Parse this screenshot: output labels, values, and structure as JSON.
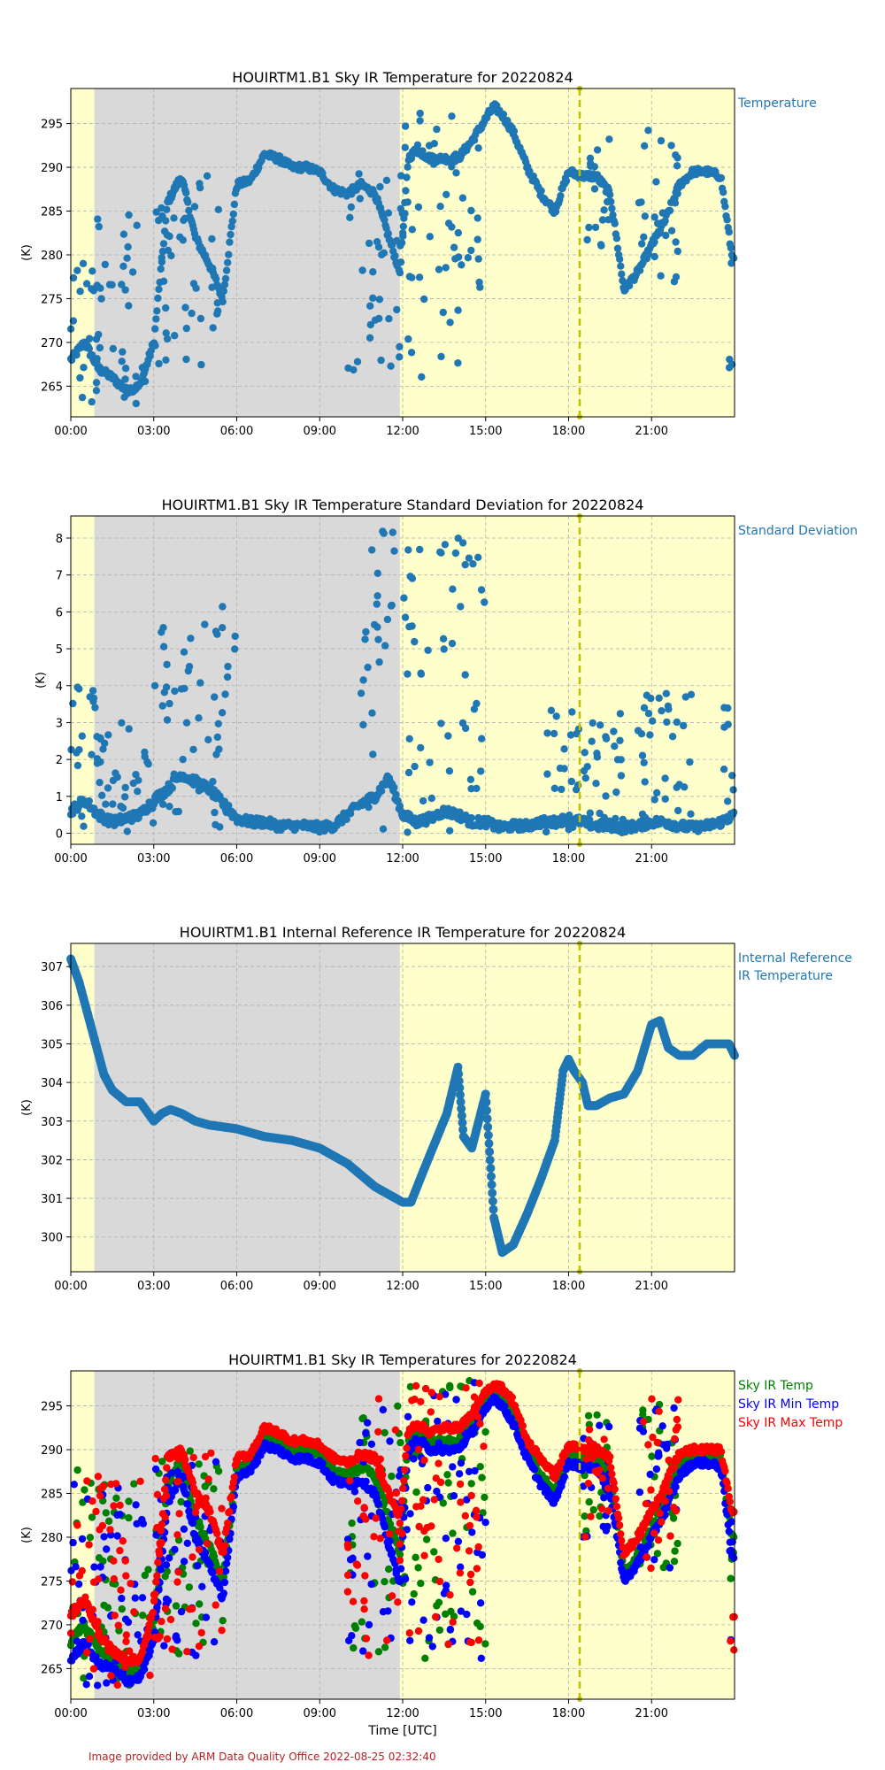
{
  "credit": "Image provided by ARM Data Quality Office 2022-08-25 02:32:40",
  "colors": {
    "night_shade": "#d9d9d9",
    "day_shade": "#ffffcc",
    "marker_line": "#bfbf00",
    "series_blue": "#1f77b4",
    "green": "#008000",
    "blue": "#0000ff",
    "red": "#ff0000"
  },
  "chart_data": [
    {
      "type": "scatter",
      "title": "HOUIRTM1.B1 Sky IR Temperature for 20220824",
      "ylabel": "(K)",
      "xlabel": "",
      "xlim": [
        0,
        24
      ],
      "ylim": [
        261.5,
        299
      ],
      "x_ticks": [
        0,
        3,
        6,
        9,
        12,
        15,
        18,
        21
      ],
      "x_tick_labels": [
        "00:00",
        "03:00",
        "06:00",
        "09:00",
        "12:00",
        "15:00",
        "18:00",
        "21:00"
      ],
      "y_ticks": [
        265,
        270,
        275,
        280,
        285,
        290,
        295
      ],
      "grid": true,
      "shading": [
        {
          "from": 0,
          "to": 0.85,
          "kind": "day"
        },
        {
          "from": 0.85,
          "to": 11.9,
          "kind": "night"
        },
        {
          "from": 11.9,
          "to": 24,
          "kind": "day"
        }
      ],
      "vline_hour": 18.4,
      "legend": [
        {
          "label": "Temperature",
          "color": "#1f77b4"
        }
      ],
      "series": [
        {
          "name": "Temperature",
          "color": "#1f77b4",
          "x": [
            0,
            0.5,
            1,
            1.5,
            2,
            2.5,
            3,
            3.5,
            4,
            4.5,
            5,
            5.5,
            6,
            6.5,
            7,
            7.5,
            8,
            8.5,
            9,
            9.5,
            10,
            10.5,
            11,
            11.5,
            11.9,
            12.2,
            12.5,
            13,
            13.5,
            14,
            14.5,
            15,
            15.3,
            15.6,
            16,
            16.5,
            17,
            17.5,
            18,
            18.5,
            19,
            19.5,
            20,
            20.5,
            21,
            21.5,
            22,
            22.5,
            23,
            23.5,
            23.9
          ],
          "y": [
            268,
            270,
            267,
            266,
            264.5,
            265,
            270,
            286,
            289,
            282,
            279,
            275,
            288,
            288.5,
            291.5,
            291,
            290,
            290,
            289.5,
            287.5,
            287,
            288,
            287,
            282,
            278,
            291,
            292,
            291,
            291,
            291,
            293,
            295.5,
            297,
            296,
            294,
            290,
            287,
            285,
            289.5,
            289,
            289,
            287,
            276,
            278,
            281,
            284,
            288,
            289.5,
            289.5,
            289,
            280
          ]
        }
      ],
      "scatter_hours": [
        {
          "from": 0,
          "to": 0.85,
          "ymin": 263,
          "ymax": 281
        },
        {
          "from": 0.9,
          "to": 2.9,
          "ymin": 263,
          "ymax": 286
        },
        {
          "from": 3,
          "to": 5.5,
          "ymin": 267,
          "ymax": 290
        },
        {
          "from": 10,
          "to": 12,
          "ymin": 266,
          "ymax": 290
        },
        {
          "from": 12,
          "to": 15,
          "ymin": 266,
          "ymax": 297
        },
        {
          "from": 18.5,
          "to": 19.5,
          "ymin": 280,
          "ymax": 294
        },
        {
          "from": 20.5,
          "to": 22,
          "ymin": 276,
          "ymax": 295
        },
        {
          "from": 23.8,
          "to": 24,
          "ymin": 266,
          "ymax": 283
        }
      ]
    },
    {
      "type": "scatter",
      "title": "HOUIRTM1.B1 Sky IR Temperature Standard Deviation for 20220824",
      "ylabel": "(K)",
      "xlabel": "",
      "xlim": [
        0,
        24
      ],
      "ylim": [
        -0.3,
        8.6
      ],
      "x_ticks": [
        0,
        3,
        6,
        9,
        12,
        15,
        18,
        21
      ],
      "x_tick_labels": [
        "00:00",
        "03:00",
        "06:00",
        "09:00",
        "12:00",
        "15:00",
        "18:00",
        "21:00"
      ],
      "y_ticks": [
        0,
        1,
        2,
        3,
        4,
        5,
        6,
        7,
        8
      ],
      "grid": true,
      "shading": [
        {
          "from": 0,
          "to": 0.85,
          "kind": "day"
        },
        {
          "from": 0.85,
          "to": 11.9,
          "kind": "night"
        },
        {
          "from": 11.9,
          "to": 24,
          "kind": "day"
        }
      ],
      "vline_hour": 18.4,
      "legend": [
        {
          "label": "Standard Deviation",
          "color": "#1f77b4"
        }
      ],
      "series": [
        {
          "name": "Standard Deviation",
          "color": "#1f77b4",
          "x": [
            0,
            0.5,
            1,
            1.5,
            2,
            2.5,
            3,
            3.5,
            4,
            4.5,
            5,
            5.5,
            6,
            6.5,
            7,
            7.5,
            8,
            8.5,
            9,
            9.5,
            10,
            10.5,
            11,
            11.5,
            12,
            12.5,
            13,
            13.5,
            14,
            14.5,
            15,
            15.5,
            16,
            16.5,
            17,
            17.5,
            18,
            18.5,
            19,
            19.5,
            20,
            20.5,
            21,
            21.5,
            22,
            22.5,
            23,
            23.5,
            24
          ],
          "y": [
            0.6,
            0.9,
            0.5,
            0.3,
            0.4,
            0.5,
            0.9,
            1.2,
            1.6,
            1.4,
            1.2,
            0.8,
            0.4,
            0.3,
            0.3,
            0.2,
            0.2,
            0.2,
            0.15,
            0.2,
            0.5,
            0.8,
            1.0,
            1.5,
            0.5,
            0.3,
            0.4,
            0.6,
            0.5,
            0.3,
            0.3,
            0.15,
            0.2,
            0.2,
            0.3,
            0.3,
            0.4,
            0.3,
            0.2,
            0.2,
            0.15,
            0.2,
            0.3,
            0.3,
            0.2,
            0.15,
            0.2,
            0.3,
            0.5
          ]
        }
      ],
      "scatter_hours": [
        {
          "from": 0,
          "to": 0.9,
          "ymin": 0,
          "ymax": 4.5
        },
        {
          "from": 0.9,
          "to": 3,
          "ymin": 0,
          "ymax": 3
        },
        {
          "from": 3,
          "to": 6,
          "ymin": 0,
          "ymax": 6.4
        },
        {
          "from": 10.5,
          "to": 12,
          "ymin": 0,
          "ymax": 8.2
        },
        {
          "from": 12,
          "to": 15,
          "ymin": 0,
          "ymax": 8
        },
        {
          "from": 17,
          "to": 20,
          "ymin": 0,
          "ymax": 3.4
        },
        {
          "from": 20.5,
          "to": 22.5,
          "ymin": 0,
          "ymax": 3.8
        },
        {
          "from": 23.5,
          "to": 24,
          "ymin": 0,
          "ymax": 3.5
        }
      ]
    },
    {
      "type": "scatter",
      "title": "HOUIRTM1.B1 Internal Reference IR Temperature for 20220824",
      "ylabel": "(K)",
      "xlabel": "",
      "xlim": [
        0,
        24
      ],
      "ylim": [
        299.1,
        307.6
      ],
      "x_ticks": [
        0,
        3,
        6,
        9,
        12,
        15,
        18,
        21
      ],
      "x_tick_labels": [
        "00:00",
        "03:00",
        "06:00",
        "09:00",
        "12:00",
        "15:00",
        "18:00",
        "21:00"
      ],
      "y_ticks": [
        300,
        301,
        302,
        303,
        304,
        305,
        306,
        307
      ],
      "grid": true,
      "shading": [
        {
          "from": 0,
          "to": 0.85,
          "kind": "day"
        },
        {
          "from": 0.85,
          "to": 11.9,
          "kind": "night"
        },
        {
          "from": 11.9,
          "to": 24,
          "kind": "day"
        }
      ],
      "vline_hour": 18.4,
      "legend": [
        {
          "label": "Internal Reference\n IR Temperature",
          "color": "#1f77b4"
        }
      ],
      "series": [
        {
          "name": "Internal Reference IR Temperature",
          "color": "#1f77b4",
          "x": [
            0,
            0.3,
            0.6,
            0.9,
            1.2,
            1.5,
            2,
            2.5,
            2.8,
            3,
            3.3,
            3.6,
            4,
            4.5,
            5,
            6,
            7,
            8,
            9,
            9.5,
            10,
            10.5,
            11,
            11.5,
            12,
            12.3,
            12.8,
            13.2,
            13.6,
            14,
            14.2,
            14.5,
            15,
            15.3,
            15.6,
            16,
            16.5,
            17,
            17.5,
            17.8,
            18,
            18.2,
            18.5,
            18.7,
            19,
            19.5,
            20,
            20.5,
            21,
            21.3,
            21.6,
            22,
            22.5,
            23,
            23.5,
            23.8,
            24
          ],
          "y": [
            307.2,
            306.6,
            305.8,
            305,
            304.2,
            303.8,
            303.5,
            303.5,
            303.2,
            303,
            303.2,
            303.3,
            303.2,
            303,
            302.9,
            302.8,
            302.6,
            302.5,
            302.3,
            302.1,
            301.9,
            301.6,
            301.3,
            301.1,
            300.9,
            300.9,
            301.8,
            302.5,
            303.2,
            304.4,
            302.6,
            302.3,
            303.7,
            300.5,
            299.6,
            299.8,
            300.6,
            301.5,
            302.5,
            304.3,
            304.6,
            304.3,
            304,
            303.4,
            303.4,
            303.6,
            303.7,
            304.3,
            305.5,
            305.6,
            304.9,
            304.7,
            304.7,
            305,
            305,
            305,
            304.7
          ]
        }
      ],
      "scatter_hours": []
    },
    {
      "type": "scatter",
      "title": "HOUIRTM1.B1 Sky IR Temperatures for 20220824",
      "ylabel": "(K)",
      "xlabel": "Time [UTC]",
      "xlim": [
        0,
        24
      ],
      "ylim": [
        261.5,
        299
      ],
      "x_ticks": [
        0,
        3,
        6,
        9,
        12,
        15,
        18,
        21
      ],
      "x_tick_labels": [
        "00:00",
        "03:00",
        "06:00",
        "09:00",
        "12:00",
        "15:00",
        "18:00",
        "21:00"
      ],
      "y_ticks": [
        265,
        270,
        275,
        280,
        285,
        290,
        295
      ],
      "grid": true,
      "shading": [
        {
          "from": 0,
          "to": 0.85,
          "kind": "day"
        },
        {
          "from": 0.85,
          "to": 11.9,
          "kind": "night"
        },
        {
          "from": 11.9,
          "to": 24,
          "kind": "day"
        }
      ],
      "vline_hour": 18.4,
      "legend": [
        {
          "label": "Sky IR Temp",
          "color": "#008000"
        },
        {
          "label": "Sky IR Min Temp",
          "color": "#0000ff"
        },
        {
          "label": "Sky IR Max Temp",
          "color": "#ff0000"
        }
      ],
      "series": [
        {
          "name": "Sky IR Temp",
          "color": "#008000",
          "x": [
            0,
            0.5,
            1,
            1.5,
            2,
            2.5,
            3,
            3.5,
            4,
            4.5,
            5,
            5.5,
            6,
            6.5,
            7,
            7.5,
            8,
            8.5,
            9,
            9.5,
            10,
            10.5,
            11,
            11.5,
            11.9,
            12.2,
            12.5,
            13,
            13.5,
            14,
            14.5,
            15,
            15.3,
            15.6,
            16,
            16.5,
            17,
            17.5,
            18,
            18.5,
            19,
            19.5,
            20,
            20.5,
            21,
            21.5,
            22,
            22.5,
            23,
            23.5,
            23.9
          ],
          "y": [
            268,
            270,
            267,
            266,
            264.5,
            265,
            270,
            286,
            289,
            282,
            279,
            275,
            288,
            288.5,
            291.5,
            291,
            290,
            290,
            289.5,
            287.5,
            287,
            288,
            287,
            282,
            278,
            291,
            292,
            291,
            291,
            291,
            293,
            295.5,
            297,
            296,
            294,
            290,
            287,
            285,
            289.5,
            289,
            289,
            287,
            276,
            278,
            281,
            284,
            288,
            289.5,
            289.5,
            289,
            280
          ]
        },
        {
          "name": "Sky IR Min Temp",
          "color": "#0000ff",
          "x": [
            0,
            0.5,
            1,
            1.5,
            2,
            2.5,
            3,
            3.5,
            4,
            4.5,
            5,
            5.5,
            6,
            6.5,
            7,
            7.5,
            8,
            8.5,
            9,
            9.5,
            10,
            10.5,
            11,
            11.5,
            11.9,
            12.2,
            12.5,
            13,
            13.5,
            14,
            14.5,
            15,
            15.3,
            15.6,
            16,
            16.5,
            17,
            17.5,
            18,
            18.5,
            19,
            19.5,
            20,
            20.5,
            21,
            21.5,
            22,
            22.5,
            23,
            23.5,
            23.9
          ],
          "y": [
            266,
            268,
            265.5,
            265,
            263.5,
            264,
            268,
            284,
            287,
            280,
            277,
            273,
            287,
            287.5,
            290.5,
            290,
            289,
            289,
            288.5,
            286.5,
            286,
            286.5,
            285,
            279,
            275,
            290,
            291,
            290,
            290,
            290,
            292,
            294.5,
            296,
            295,
            293,
            289,
            286,
            284,
            288.5,
            288,
            288,
            285,
            275,
            277,
            280,
            283,
            287,
            288.5,
            288.5,
            288,
            278
          ]
        },
        {
          "name": "Sky IR Max Temp",
          "color": "#ff0000",
          "x": [
            0,
            0.5,
            1,
            1.5,
            2,
            2.5,
            3,
            3.5,
            4,
            4.5,
            5,
            5.5,
            6,
            6.5,
            7,
            7.5,
            8,
            8.5,
            9,
            9.5,
            10,
            10.5,
            11,
            11.5,
            11.9,
            12.2,
            12.5,
            13,
            13.5,
            14,
            14.5,
            15,
            15.3,
            15.6,
            16,
            16.5,
            17,
            17.5,
            18,
            18.5,
            19,
            19.5,
            20,
            20.5,
            21,
            21.5,
            22,
            22.5,
            23,
            23.5,
            23.9
          ],
          "y": [
            271,
            273,
            269,
            267,
            266,
            266,
            272,
            289,
            290,
            285,
            283,
            278,
            289,
            289.5,
            292.5,
            292,
            291,
            291,
            290.5,
            289,
            288.5,
            289.5,
            289,
            285,
            282,
            292,
            293,
            292,
            292.5,
            292.5,
            294,
            296.5,
            297.5,
            297,
            295.5,
            291,
            289,
            287,
            290.5,
            290,
            290,
            289,
            278,
            280,
            283,
            286,
            289.5,
            290,
            290,
            290,
            283
          ]
        }
      ],
      "scatter_hours": [
        {
          "from": 0,
          "to": 0.85,
          "ymin": 263,
          "ymax": 289
        },
        {
          "from": 0.9,
          "to": 2.9,
          "ymin": 263,
          "ymax": 287
        },
        {
          "from": 3,
          "to": 5.5,
          "ymin": 266,
          "ymax": 290
        },
        {
          "from": 10,
          "to": 12,
          "ymin": 266,
          "ymax": 296
        },
        {
          "from": 12,
          "to": 15,
          "ymin": 266,
          "ymax": 298
        },
        {
          "from": 18.5,
          "to": 19.5,
          "ymin": 280,
          "ymax": 294
        },
        {
          "from": 20.5,
          "to": 22,
          "ymin": 276,
          "ymax": 296
        },
        {
          "from": 23.8,
          "to": 24,
          "ymin": 266,
          "ymax": 283
        }
      ]
    }
  ]
}
